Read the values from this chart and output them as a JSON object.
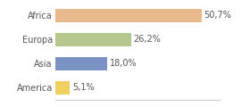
{
  "categories": [
    "Africa",
    "Europa",
    "Asia",
    "America"
  ],
  "values": [
    50.7,
    26.2,
    18.0,
    5.1
  ],
  "labels": [
    "50,7%",
    "26,2%",
    "18,0%",
    "5,1%"
  ],
  "bar_colors": [
    "#e8b98a",
    "#b5c78a",
    "#7b93c4",
    "#f0d060"
  ],
  "background_color": "#ffffff",
  "xlim": [
    0,
    57
  ],
  "bar_height": 0.55,
  "label_fontsize": 7.0,
  "category_fontsize": 7.0,
  "label_color": "#555555",
  "spine_color": "#cccccc"
}
